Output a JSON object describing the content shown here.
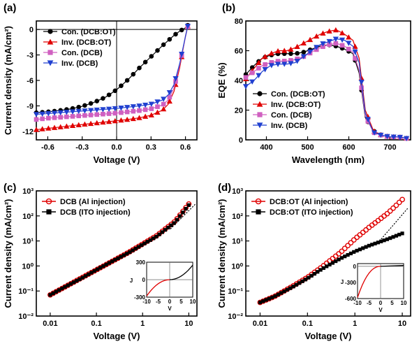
{
  "chart_data": [
    {
      "panel": "(a)",
      "type": "line",
      "xlabel": "Voltage (V)",
      "ylabel": "Current density (mA/cm²)",
      "xlim": [
        -0.7,
        0.7
      ],
      "ylim": [
        -13,
        1
      ],
      "xticks": [
        "-0.6",
        "-0.3",
        "0.0",
        "0.3",
        "0.6"
      ],
      "xtick_values": [
        -0.6,
        -0.3,
        0.0,
        0.3,
        0.6
      ],
      "yticks": [
        "0",
        "-3",
        "-6",
        "-9",
        "-12"
      ],
      "ytick_values": [
        0,
        -3,
        -6,
        -9,
        -12
      ],
      "legend_position": "top-left",
      "x": [
        -0.7,
        -0.6,
        -0.5,
        -0.4,
        -0.3,
        -0.2,
        -0.1,
        0.0,
        0.1,
        0.2,
        0.3,
        0.4,
        0.45,
        0.5,
        0.55,
        0.6,
        0.62
      ],
      "series": [
        {
          "name": "Con. (DCB:OT)",
          "color": "#000000",
          "marker": "circle",
          "values": [
            -9.8,
            -9.7,
            -9.55,
            -9.35,
            -9.05,
            -8.6,
            -8.0,
            -7.1,
            -5.9,
            -4.5,
            -3.2,
            -1.9,
            -1.3,
            -0.7,
            -0.2,
            0.2,
            0.5
          ]
        },
        {
          "name": "Inv.  (DCB:OT)",
          "color": "#e00000",
          "marker": "triangle-up",
          "values": [
            -11.8,
            -11.65,
            -11.5,
            -11.35,
            -11.2,
            -11.05,
            -10.9,
            -10.75,
            -10.6,
            -10.4,
            -10.1,
            -9.5,
            -8.8,
            -7.3,
            -4.5,
            -0.8,
            0.4
          ]
        },
        {
          "name": "Con. (DCB)",
          "color": "#d060c0",
          "marker": "square",
          "values": [
            -10.6,
            -10.45,
            -10.35,
            -10.25,
            -10.15,
            -10.05,
            -9.95,
            -9.85,
            -9.7,
            -9.55,
            -9.35,
            -8.9,
            -8.3,
            -6.9,
            -4.2,
            -0.9,
            0.3
          ]
        },
        {
          "name": "Inv.  (DCB)",
          "color": "#2040d0",
          "marker": "triangle-down",
          "values": [
            -10.0,
            -9.9,
            -9.8,
            -9.7,
            -9.6,
            -9.5,
            -9.4,
            -9.3,
            -9.15,
            -9.0,
            -8.8,
            -8.3,
            -7.7,
            -6.5,
            -4.0,
            -0.8,
            0.4
          ]
        }
      ]
    },
    {
      "panel": "(b)",
      "type": "line",
      "xlabel": "Wavelength (nm)",
      "ylabel": "EQE (%)",
      "xlim": [
        350,
        750
      ],
      "ylim": [
        0,
        80
      ],
      "xticks": [
        "400",
        "500",
        "600",
        "700"
      ],
      "xtick_values": [
        400,
        500,
        600,
        700
      ],
      "yticks": [
        "0",
        "20",
        "40",
        "60",
        "80"
      ],
      "ytick_values": [
        0,
        20,
        40,
        60,
        80
      ],
      "legend_position": "bottom-left",
      "x": [
        350,
        370,
        390,
        410,
        430,
        450,
        470,
        490,
        510,
        530,
        550,
        570,
        590,
        610,
        625,
        640,
        660,
        680,
        700,
        720,
        740
      ],
      "series": [
        {
          "name": "Con. (DCB:OT)",
          "color": "#000000",
          "marker": "circle",
          "values": [
            44,
            50,
            55,
            57,
            58,
            58,
            58,
            59,
            61,
            63,
            64,
            63,
            61,
            58,
            45,
            15,
            6,
            3,
            2,
            2,
            1
          ]
        },
        {
          "name": "Inv.  (DCB:OT)",
          "color": "#e00000",
          "marker": "triangle-up",
          "values": [
            41,
            48,
            55,
            58,
            60,
            60,
            62,
            65,
            68,
            71,
            73,
            74,
            71,
            67,
            55,
            20,
            6,
            3,
            2,
            2,
            1
          ]
        },
        {
          "name": "Con. (DCB)",
          "color": "#d060c0",
          "marker": "square",
          "values": [
            42,
            46,
            50,
            52,
            53,
            53,
            54,
            56,
            59,
            62,
            64,
            65,
            63,
            59,
            47,
            16,
            5,
            3,
            2,
            2,
            1
          ]
        },
        {
          "name": "Inv.  (DCB)",
          "color": "#2040d0",
          "marker": "triangle-down",
          "values": [
            36,
            40,
            46,
            50,
            51,
            51,
            52,
            56,
            60,
            64,
            66,
            68,
            67,
            63,
            52,
            18,
            5,
            3,
            2,
            2,
            1
          ]
        }
      ]
    },
    {
      "panel": "(c)",
      "type": "scatter",
      "xlabel": "Voltage (V)",
      "ylabel": "Current density (mA/cm²)",
      "xscale": "log",
      "yscale": "log",
      "xlim": [
        0.005,
        15
      ],
      "ylim": [
        0.01,
        1000
      ],
      "xticks": [
        "0.01",
        "0.1",
        "1",
        "10"
      ],
      "xtick_values": [
        0.01,
        0.1,
        1,
        10
      ],
      "yticks": [
        "10⁻²",
        "10⁻¹",
        "10⁰",
        "10¹",
        "10²",
        "10³"
      ],
      "ytick_values": [
        0.01,
        0.1,
        1,
        10,
        100,
        1000
      ],
      "legend_position": "top-left",
      "series": [
        {
          "name": "DCB (Al injection)",
          "color": "#e00000",
          "marker": "open-circle",
          "points": [
            [
              0.01,
              0.07
            ],
            [
              0.02,
              0.14
            ],
            [
              0.05,
              0.35
            ],
            [
              0.1,
              0.7
            ],
            [
              0.2,
              1.4
            ],
            [
              0.5,
              3.5
            ],
            [
              1,
              7.5
            ],
            [
              2,
              16
            ],
            [
              5,
              60
            ],
            [
              10,
              300
            ]
          ]
        },
        {
          "name": "DCB (ITO injection)",
          "color": "#000000",
          "marker": "square",
          "points": [
            [
              0.01,
              0.07
            ],
            [
              0.02,
              0.14
            ],
            [
              0.05,
              0.34
            ],
            [
              0.1,
              0.7
            ],
            [
              0.2,
              1.4
            ],
            [
              0.5,
              3.4
            ],
            [
              1,
              7.2
            ],
            [
              2,
              15
            ],
            [
              5,
              55
            ],
            [
              10,
              270
            ]
          ]
        }
      ],
      "inset": {
        "xlabel": "V",
        "ylabel": "J",
        "xticks": [
          "-10",
          "-5",
          "0",
          "5",
          "10"
        ],
        "yticks": [
          "300",
          "0",
          "-300"
        ],
        "xlim": [
          -10,
          10
        ],
        "ylim": [
          -300,
          300
        ]
      }
    },
    {
      "panel": "(d)",
      "type": "scatter",
      "xlabel": "Voltage (V)",
      "ylabel": "Current density (mA/cm²)",
      "xscale": "log",
      "yscale": "log",
      "xlim": [
        0.005,
        15
      ],
      "ylim": [
        0.01,
        1000
      ],
      "xticks": [
        "0.01",
        "0.1",
        "1",
        "10"
      ],
      "xtick_values": [
        0.01,
        0.1,
        1,
        10
      ],
      "yticks": [
        "10⁻²",
        "10⁻¹",
        "10⁰",
        "10¹",
        "10²",
        "10³"
      ],
      "ytick_values": [
        0.01,
        0.1,
        1,
        10,
        100,
        1000
      ],
      "legend_position": "top-left",
      "series": [
        {
          "name": "DCB:OT (Al injection)",
          "color": "#e00000",
          "marker": "open-circle",
          "points": [
            [
              0.01,
              0.035
            ],
            [
              0.02,
              0.06
            ],
            [
              0.05,
              0.16
            ],
            [
              0.1,
              0.35
            ],
            [
              0.2,
              0.9
            ],
            [
              0.5,
              3.5
            ],
            [
              1,
              12
            ],
            [
              2,
              35
            ],
            [
              5,
              130
            ],
            [
              10,
              450
            ]
          ]
        },
        {
          "name": "DCB:OT (ITO injection)",
          "color": "#000000",
          "marker": "square",
          "points": [
            [
              0.01,
              0.035
            ],
            [
              0.02,
              0.06
            ],
            [
              0.05,
              0.15
            ],
            [
              0.1,
              0.32
            ],
            [
              0.2,
              0.75
            ],
            [
              0.5,
              2.0
            ],
            [
              1,
              3.8
            ],
            [
              2,
              6.5
            ],
            [
              5,
              12
            ],
            [
              10,
              20
            ]
          ]
        }
      ],
      "inset": {
        "xlabel": "V",
        "ylabel": "J",
        "xticks": [
          "-10",
          "-5",
          "0",
          "5",
          "10"
        ],
        "yticks": [
          "0",
          "-300",
          "-600"
        ],
        "xlim": [
          -10,
          10
        ],
        "ylim": [
          -600,
          50
        ]
      }
    }
  ]
}
